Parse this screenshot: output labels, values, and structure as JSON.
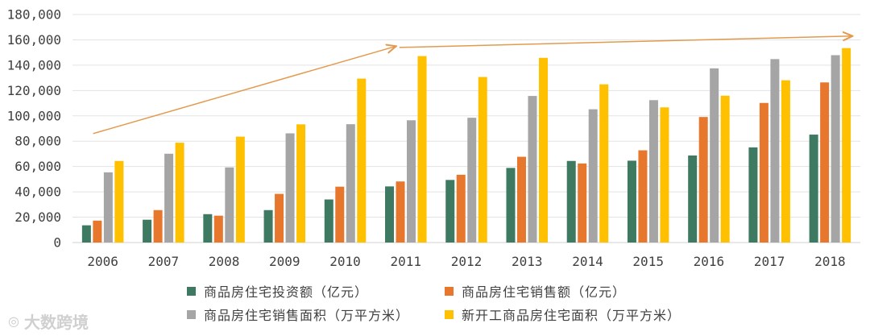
{
  "chart_data": {
    "type": "bar",
    "categories": [
      "2006",
      "2007",
      "2008",
      "2009",
      "2010",
      "2011",
      "2012",
      "2013",
      "2014",
      "2015",
      "2016",
      "2017",
      "2018"
    ],
    "ylim": [
      0,
      180000
    ],
    "yticks": [
      "0",
      "20,000",
      "40,000",
      "60,000",
      "80,000",
      "100,000",
      "120,000",
      "140,000",
      "160,000",
      "180,000"
    ],
    "ytick_values": [
      0,
      20000,
      40000,
      60000,
      80000,
      100000,
      120000,
      140000,
      160000,
      180000
    ],
    "grid": "horizontal",
    "legend_position": "bottom",
    "series": [
      {
        "name": "商品房住宅投资额（亿元）",
        "color": "#3e7a61",
        "values": [
          13600,
          18000,
          22400,
          25600,
          34000,
          44300,
          49400,
          58900,
          64400,
          64600,
          68700,
          75100,
          85200
        ]
      },
      {
        "name": "商品房住宅销售额（亿元）",
        "color": "#e8772e",
        "values": [
          17300,
          25600,
          21200,
          38400,
          44100,
          48200,
          53500,
          67700,
          62400,
          72800,
          99100,
          110200,
          126400
        ]
      },
      {
        "name": "商品房住宅销售面积（万平方米）",
        "color": "#a5a5a5",
        "values": [
          55400,
          70100,
          59300,
          86200,
          93400,
          96500,
          98500,
          115700,
          105200,
          112400,
          137500,
          144800,
          147900
        ]
      },
      {
        "name": "新开工商品房住宅面积（万平方米）",
        "color": "#ffc000",
        "values": [
          64400,
          78800,
          83600,
          93300,
          129400,
          147200,
          130700,
          145800,
          124900,
          106700,
          115900,
          128100,
          153500
        ]
      }
    ],
    "trend_arrows": [
      {
        "from": [
          "2006",
          86000
        ],
        "to": [
          "2011",
          155000
        ]
      },
      {
        "from": [
          "2011",
          154000
        ],
        "to": [
          "2018",
          163000
        ]
      }
    ],
    "arrow_color": "#e39a4e"
  },
  "watermark": {
    "text": "大数跨境",
    "icon": "camera-icon"
  }
}
